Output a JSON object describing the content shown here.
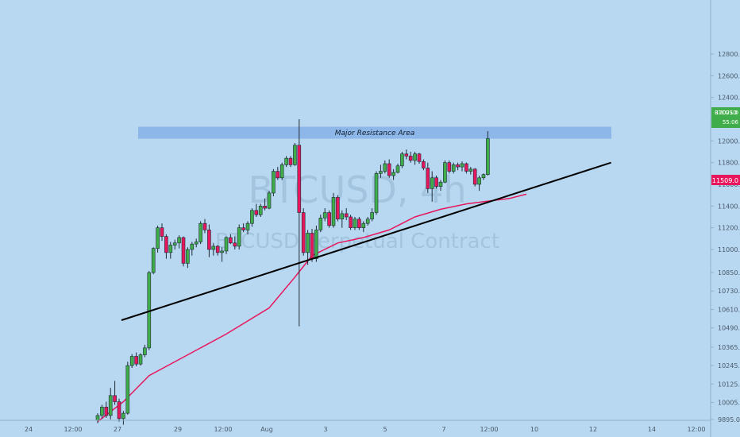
{
  "chart_data": {
    "type": "candlestick",
    "watermark": {
      "symbol": "BTCUSD, 4h",
      "description": "BTCUSD Perpetual Contract"
    },
    "price_axis": {
      "ticks": [
        12800.0,
        12600.0,
        12400.0,
        12200.0,
        12000.0,
        11800.0,
        11600.0,
        11400.0,
        11200.0,
        11000.0,
        10850.0,
        10730.0,
        10610.0,
        10490.0,
        10365.0,
        10245.0,
        10125.0,
        10005.0,
        9895.0
      ],
      "tick_labels": [
        "12800.0",
        "12600.0",
        "12400.0",
        "12200.0",
        "12000.0",
        "11800.0",
        "11600.0",
        "11400.0",
        "11200.0",
        "11000.0",
        "10850.0",
        "10730.0",
        "10610.0",
        "10490.0",
        "10365.0",
        "10245.0",
        "10125.0",
        "10005.0",
        "9895.0"
      ],
      "scale": "compressed below 11000"
    },
    "time_axis": {
      "tick_labels": [
        "24",
        "12:00",
        "27",
        "29",
        "12:00",
        "Aug",
        "3",
        "5",
        "7",
        "12:00",
        "10",
        "12",
        "14",
        "12:00"
      ]
    },
    "price_tag": {
      "symbol": "BTCUSD",
      "price": "12021.0",
      "countdown": "55:06",
      "color": "#3fae4a"
    },
    "ma_tag": {
      "price": "11509.0",
      "color": "#e8175d"
    },
    "resistance_zone": {
      "label": "Major Resistance Area",
      "low": 12020,
      "high": 12130,
      "color": "#8ab4e8"
    },
    "trendline": {
      "from": {
        "candle": 0,
        "price": 10540
      },
      "to": {
        "candle": 124,
        "price": 11800
      },
      "color": "#000000"
    },
    "colors": {
      "up": "#3fae4a",
      "down": "#e8175d",
      "ma": "#e8175d",
      "background": "#b8d7f0"
    },
    "ohlc": [
      [
        9890,
        9935,
        9870,
        9920
      ],
      [
        9920,
        9990,
        9900,
        9975
      ],
      [
        9975,
        10010,
        9905,
        9920
      ],
      [
        9920,
        10100,
        9895,
        10050
      ],
      [
        10050,
        10145,
        9990,
        10010
      ],
      [
        10010,
        10030,
        9880,
        9900
      ],
      [
        9900,
        9950,
        9860,
        9935
      ],
      [
        9935,
        10270,
        9925,
        10245
      ],
      [
        10245,
        10320,
        10230,
        10305
      ],
      [
        10305,
        10330,
        10240,
        10255
      ],
      [
        10255,
        10325,
        10245,
        10315
      ],
      [
        10315,
        10380,
        10300,
        10360
      ],
      [
        10360,
        10860,
        10345,
        10850
      ],
      [
        10850,
        11020,
        10840,
        11010
      ],
      [
        11010,
        11220,
        10980,
        11200
      ],
      [
        11200,
        11240,
        11080,
        11120
      ],
      [
        11120,
        11140,
        10940,
        10980
      ],
      [
        10980,
        11070,
        10940,
        11040
      ],
      [
        11040,
        11090,
        11000,
        11060
      ],
      [
        11060,
        11130,
        11010,
        11110
      ],
      [
        11110,
        11120,
        10890,
        10910
      ],
      [
        10910,
        11020,
        10880,
        11000
      ],
      [
        11000,
        11070,
        10960,
        11050
      ],
      [
        11050,
        11100,
        11020,
        11070
      ],
      [
        11070,
        11260,
        11050,
        11240
      ],
      [
        11240,
        11280,
        11150,
        11180
      ],
      [
        11180,
        11230,
        10950,
        11000
      ],
      [
        11000,
        11060,
        10960,
        11030
      ],
      [
        11030,
        11040,
        10960,
        10980
      ],
      [
        10980,
        11020,
        10920,
        10990
      ],
      [
        10990,
        11120,
        10970,
        11110
      ],
      [
        11110,
        11140,
        11050,
        11060
      ],
      [
        11060,
        11120,
        11000,
        11030
      ],
      [
        11030,
        11230,
        11000,
        11200
      ],
      [
        11200,
        11240,
        11160,
        11180
      ],
      [
        11180,
        11260,
        11140,
        11240
      ],
      [
        11240,
        11380,
        11210,
        11360
      ],
      [
        11360,
        11420,
        11300,
        11320
      ],
      [
        11320,
        11420,
        11300,
        11400
      ],
      [
        11400,
        11470,
        11360,
        11380
      ],
      [
        11380,
        11540,
        11370,
        11520
      ],
      [
        11520,
        11740,
        11490,
        11720
      ],
      [
        11720,
        11760,
        11640,
        11660
      ],
      [
        11660,
        11800,
        11640,
        11780
      ],
      [
        11780,
        11860,
        11760,
        11840
      ],
      [
        11840,
        11860,
        11760,
        11780
      ],
      [
        11780,
        11980,
        11770,
        11960
      ],
      [
        11960,
        12200,
        10500,
        11340
      ],
      [
        11340,
        11380,
        10960,
        10980
      ],
      [
        10980,
        11180,
        10900,
        11150
      ],
      [
        11150,
        11190,
        10920,
        10940
      ],
      [
        10940,
        11220,
        10920,
        11180
      ],
      [
        11180,
        11320,
        11160,
        11290
      ],
      [
        11290,
        11380,
        11260,
        11340
      ],
      [
        11340,
        11360,
        11200,
        11220
      ],
      [
        11220,
        11520,
        11200,
        11480
      ],
      [
        11480,
        11500,
        11260,
        11280
      ],
      [
        11280,
        11360,
        11200,
        11330
      ],
      [
        11330,
        11380,
        11270,
        11300
      ],
      [
        11300,
        11320,
        11180,
        11200
      ],
      [
        11200,
        11300,
        11180,
        11280
      ],
      [
        11280,
        11300,
        11180,
        11200
      ],
      [
        11200,
        11260,
        11160,
        11240
      ],
      [
        11240,
        11300,
        11220,
        11280
      ],
      [
        11280,
        11380,
        11260,
        11340
      ],
      [
        11340,
        11720,
        11320,
        11700
      ],
      [
        11700,
        11780,
        11660,
        11720
      ],
      [
        11720,
        11820,
        11700,
        11790
      ],
      [
        11790,
        11830,
        11660,
        11680
      ],
      [
        11680,
        11740,
        11640,
        11710
      ],
      [
        11710,
        11790,
        11700,
        11770
      ],
      [
        11770,
        11900,
        11750,
        11880
      ],
      [
        11880,
        11920,
        11830,
        11860
      ],
      [
        11860,
        11900,
        11800,
        11820
      ],
      [
        11820,
        11900,
        11780,
        11880
      ],
      [
        11880,
        11890,
        11790,
        11810
      ],
      [
        11810,
        11830,
        11730,
        11750
      ],
      [
        11750,
        11800,
        11520,
        11560
      ],
      [
        11560,
        11720,
        11440,
        11660
      ],
      [
        11660,
        11680,
        11560,
        11580
      ],
      [
        11580,
        11640,
        11540,
        11620
      ],
      [
        11620,
        11820,
        11610,
        11800
      ],
      [
        11800,
        11820,
        11700,
        11720
      ],
      [
        11720,
        11800,
        11700,
        11780
      ],
      [
        11780,
        11800,
        11730,
        11760
      ],
      [
        11760,
        11810,
        11720,
        11790
      ],
      [
        11790,
        11800,
        11700,
        11720
      ],
      [
        11720,
        11760,
        11690,
        11740
      ],
      [
        11740,
        11750,
        11580,
        11600
      ],
      [
        11600,
        11680,
        11540,
        11660
      ],
      [
        11660,
        11700,
        11640,
        11690
      ],
      [
        11690,
        12090,
        11680,
        12021
      ]
    ],
    "ma": [
      [
        0,
        9880
      ],
      [
        6,
        10010
      ],
      [
        12,
        10180
      ],
      [
        20,
        10300
      ],
      [
        30,
        10450
      ],
      [
        40,
        10620
      ],
      [
        46,
        10820
      ],
      [
        50,
        10960
      ],
      [
        56,
        11060
      ],
      [
        62,
        11110
      ],
      [
        68,
        11180
      ],
      [
        74,
        11300
      ],
      [
        80,
        11370
      ],
      [
        86,
        11420
      ],
      [
        92,
        11450
      ],
      [
        96,
        11470
      ],
      [
        100,
        11509
      ]
    ]
  }
}
